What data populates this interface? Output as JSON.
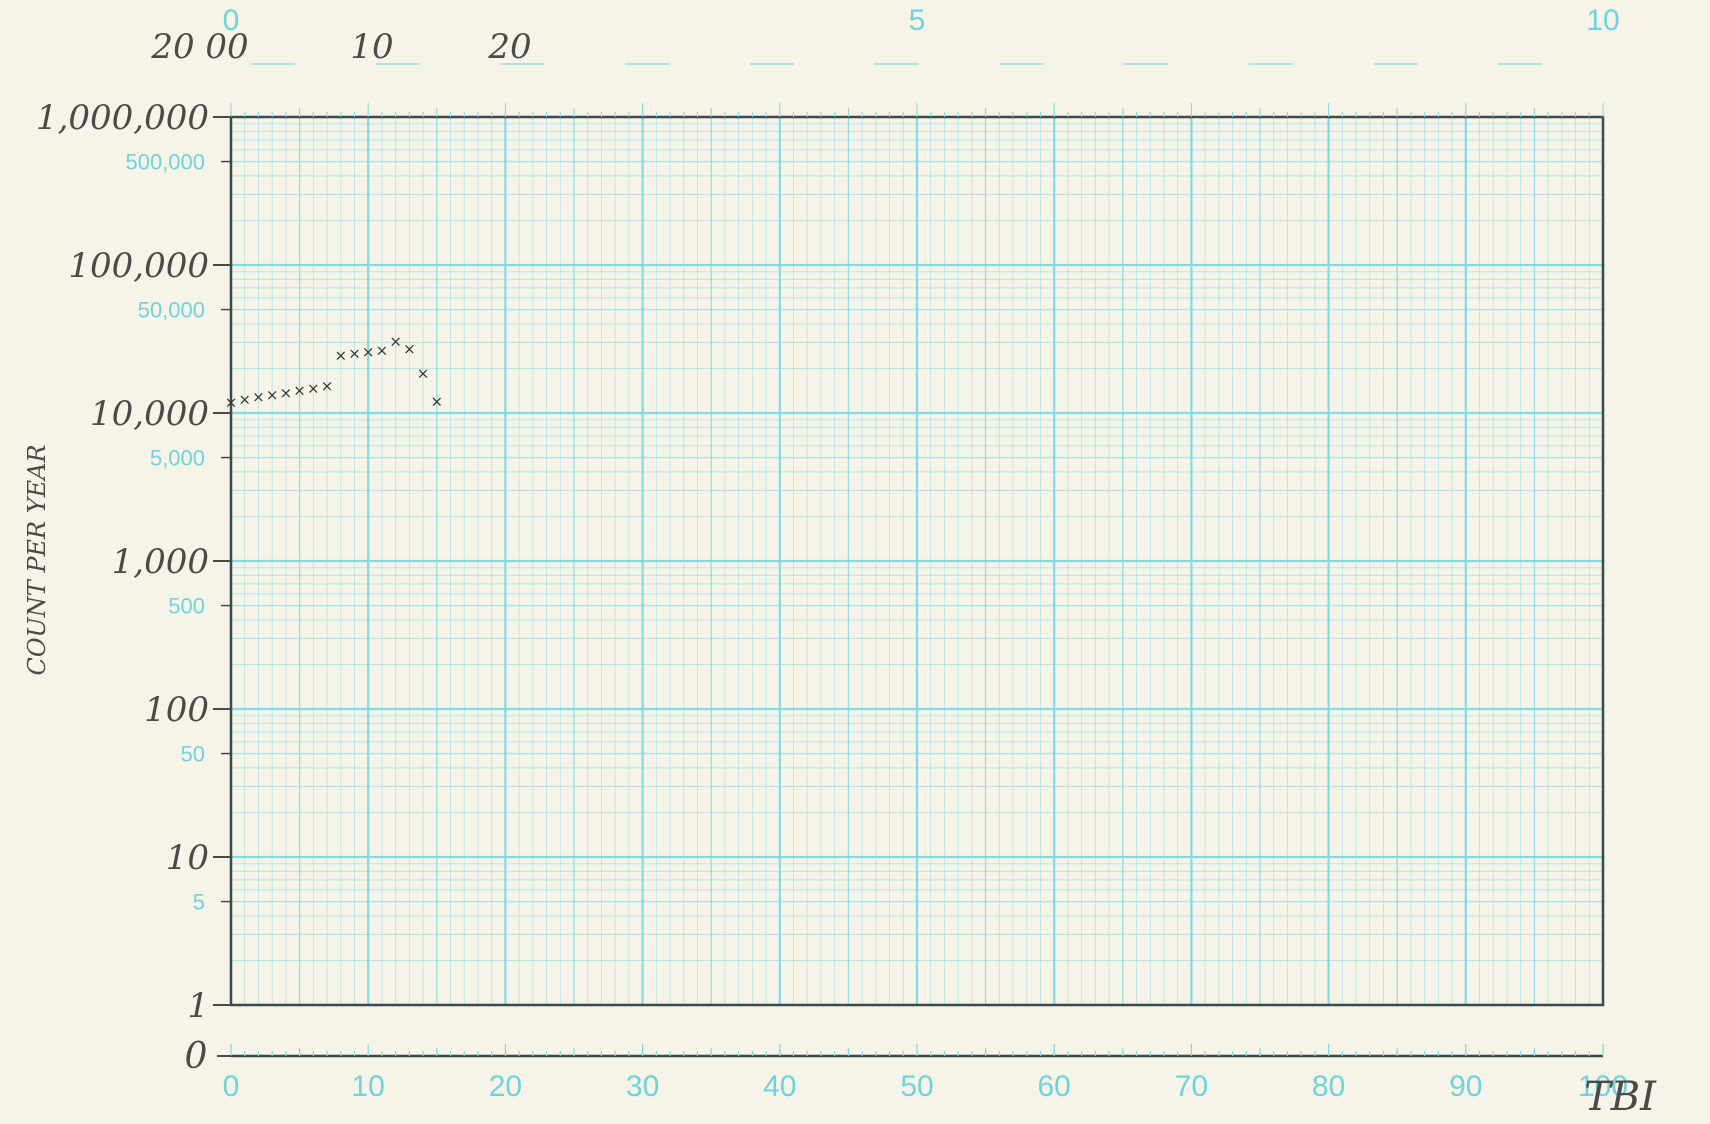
{
  "chart_data": {
    "type": "scatter",
    "title": "",
    "ylabel": "COUNT PER YEAR",
    "xlabel_corner": "TBI",
    "yscale": "log",
    "ylim": [
      1,
      1000000
    ],
    "xlim": [
      0,
      100
    ],
    "bottom_axis": {
      "zero_label": "0",
      "tick_labels": [
        "0",
        "10",
        "20",
        "30",
        "40",
        "50",
        "60",
        "70",
        "80",
        "90",
        "100"
      ]
    },
    "top_axis": {
      "printed_labels": [
        "0",
        "5",
        "10"
      ],
      "handwritten_labels": [
        "20 00",
        "10",
        "20"
      ]
    },
    "y_tick_labels_handwritten": [
      "1,000,000",
      "100,000",
      "10,000",
      "1,000",
      "100",
      "10",
      "1"
    ],
    "y_tick_labels_printed": [
      "500,000",
      "50,000",
      "5,000",
      "500",
      "50",
      "5"
    ],
    "marker": "×",
    "points": [
      {
        "x": 0,
        "y": 11800
      },
      {
        "x": 1,
        "y": 12300
      },
      {
        "x": 2,
        "y": 12800
      },
      {
        "x": 3,
        "y": 13200
      },
      {
        "x": 4,
        "y": 13700
      },
      {
        "x": 5,
        "y": 14200
      },
      {
        "x": 6,
        "y": 14600
      },
      {
        "x": 7,
        "y": 15200
      },
      {
        "x": 8,
        "y": 24500
      },
      {
        "x": 9,
        "y": 25300
      },
      {
        "x": 10,
        "y": 25800
      },
      {
        "x": 11,
        "y": 26500
      },
      {
        "x": 12,
        "y": 30500
      },
      {
        "x": 13,
        "y": 27000
      },
      {
        "x": 14,
        "y": 18500
      },
      {
        "x": 15,
        "y": 12000
      }
    ],
    "grid": true,
    "colors": {
      "paper": "#f6f3e9",
      "grid": "#7fd9e0",
      "printed_text": "#6fd3dc",
      "ink": "#4a4a4a",
      "frame": "#3d4a4c"
    }
  }
}
